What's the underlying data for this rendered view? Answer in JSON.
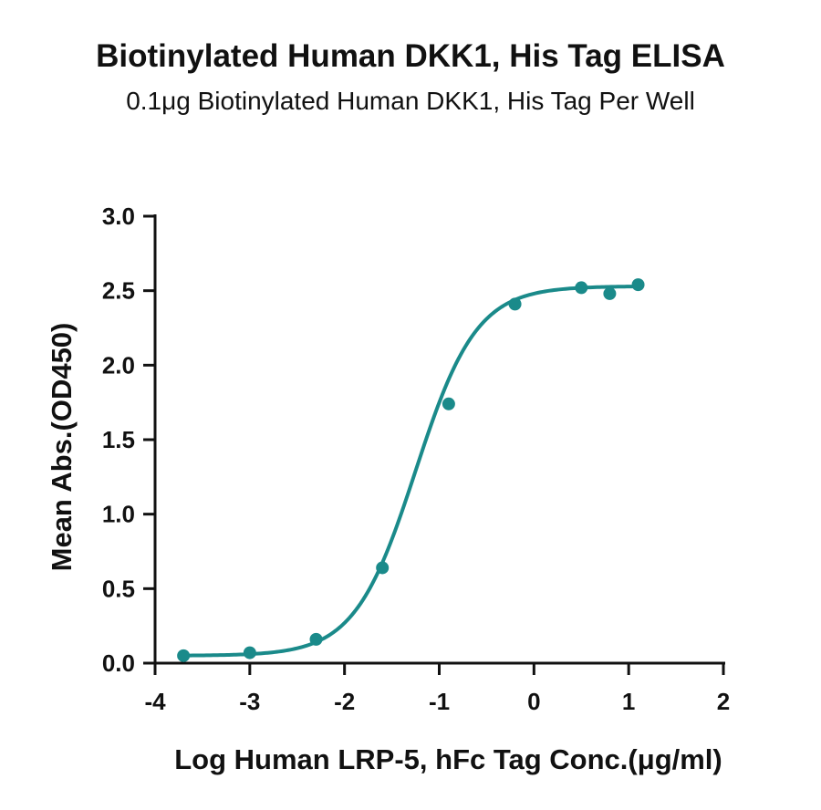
{
  "chart_data": {
    "type": "scatter",
    "title": "Biotinylated Human DKK1, His Tag ELISA",
    "subtitle": "0.1μg Biotinylated Human DKK1, His Tag Per Well",
    "xlabel": "Log Human LRP-5, hFc Tag Conc.(μg/ml)",
    "ylabel": "Mean Abs.(OD450)",
    "xlim": [
      -4,
      2
    ],
    "ylim": [
      0,
      3
    ],
    "xticks": [
      "-4",
      "-3",
      "-2",
      "-1",
      "0",
      "1",
      "2"
    ],
    "yticks": [
      "0.0",
      "0.5",
      "1.0",
      "1.5",
      "2.0",
      "2.5",
      "3.0"
    ],
    "grid": false,
    "series": [
      {
        "color": "#1a8a8a",
        "x": [
          -3.7,
          -3.0,
          -2.3,
          -1.6,
          -0.9,
          -0.2,
          0.5,
          0.8,
          1.1
        ],
        "y": [
          0.05,
          0.07,
          0.16,
          0.64,
          1.74,
          2.41,
          2.52,
          2.48,
          2.54
        ],
        "fit": "four-parameter logistic"
      }
    ]
  }
}
